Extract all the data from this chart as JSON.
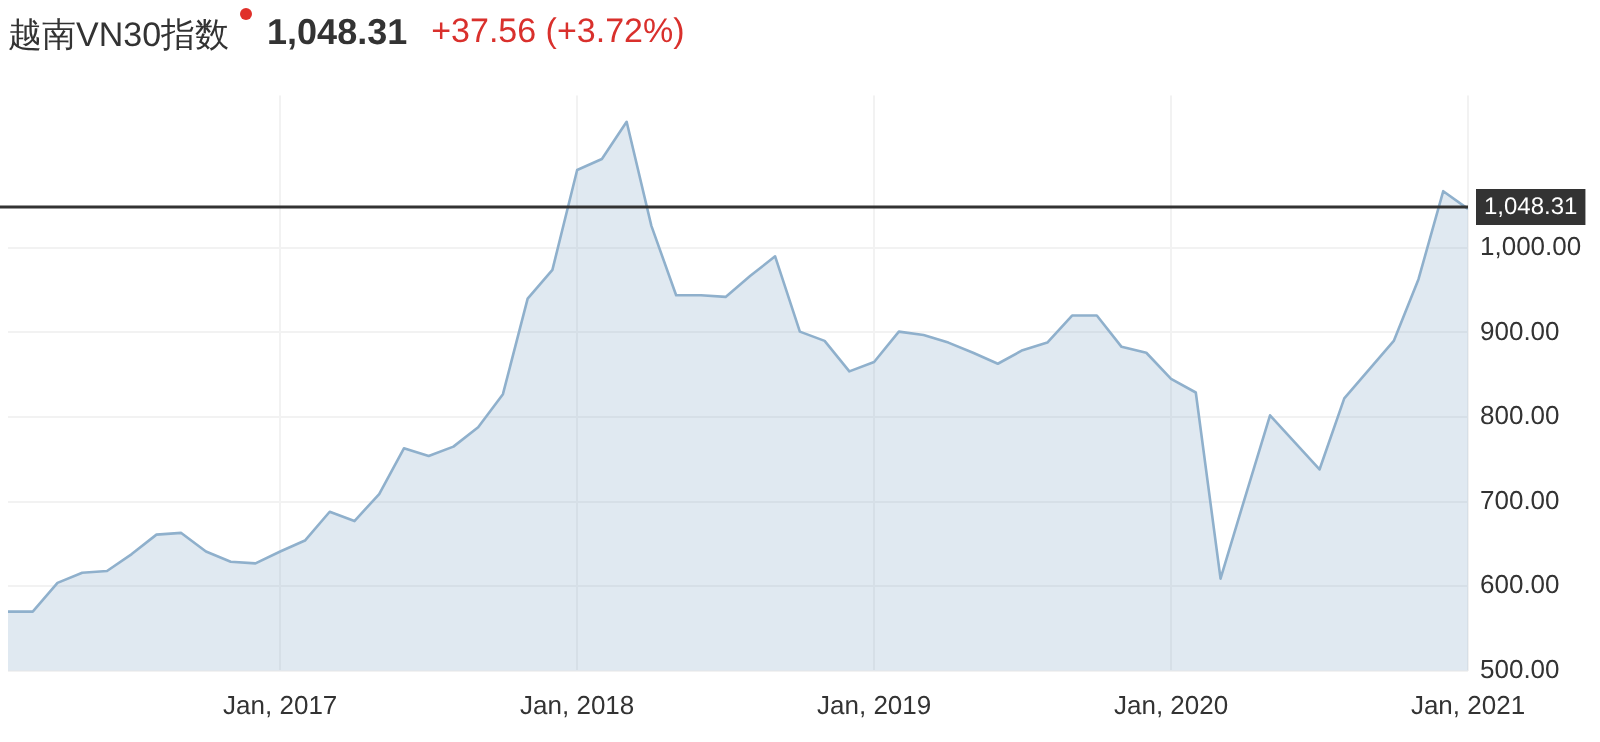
{
  "chart_data": {
    "type": "area",
    "title": "越南VN30指数",
    "subtitle": "1,048.31",
    "annotations": [
      "+37.56 (+3.72%)"
    ],
    "x": [
      "2016-02",
      "2016-03",
      "2016-04",
      "2016-05",
      "2016-06",
      "2016-07",
      "2016-08",
      "2016-09",
      "2016-10",
      "2016-11",
      "2016-12",
      "2017-01",
      "2017-02",
      "2017-03",
      "2017-04",
      "2017-05",
      "2017-06",
      "2017-07",
      "2017-08",
      "2017-09",
      "2017-10",
      "2017-11",
      "2017-12",
      "2018-01",
      "2018-02",
      "2018-03",
      "2018-04",
      "2018-05",
      "2018-06",
      "2018-07",
      "2018-08",
      "2018-09",
      "2018-10",
      "2018-11",
      "2018-12",
      "2019-01",
      "2019-02",
      "2019-03",
      "2019-04",
      "2019-05",
      "2019-06",
      "2019-07",
      "2019-08",
      "2019-09",
      "2019-10",
      "2019-11",
      "2019-12",
      "2020-01",
      "2020-02",
      "2020-03",
      "2020-04",
      "2020-05",
      "2020-06",
      "2020-07",
      "2020-08",
      "2020-09",
      "2020-10",
      "2020-11",
      "2020-12",
      "2021-01"
    ],
    "series": [
      {
        "color": "#8fb0cc",
        "values": [
          570,
          570,
          604,
          616,
          618,
          638,
          661,
          663,
          641,
          629,
          627,
          641,
          654,
          688,
          677,
          709,
          763,
          754,
          765,
          788,
          827,
          940,
          974,
          1092,
          1105,
          1149,
          1026,
          944,
          944,
          942,
          967,
          990,
          901,
          890,
          854,
          865,
          901,
          897,
          888,
          876,
          863,
          879,
          888,
          920,
          920,
          883,
          876,
          845,
          829,
          609,
          706,
          802,
          770,
          738,
          822,
          856,
          890,
          963,
          1067,
          1046
        ]
      }
    ],
    "xlim": [
      "2016-02",
      "2021-01"
    ],
    "xticks": [
      {
        "value": "2017-01",
        "label": "Jan, 2017"
      },
      {
        "value": "2018-01",
        "label": "Jan, 2018"
      },
      {
        "value": "2019-01",
        "label": "Jan, 2019"
      },
      {
        "value": "2020-01",
        "label": "Jan, 2020"
      },
      {
        "value": "2021-01",
        "label": "Jan, 2021"
      }
    ],
    "ylim": [
      500,
      1180
    ],
    "yticks": [
      {
        "value": 500,
        "label": "500.00"
      },
      {
        "value": 600,
        "label": "600.00"
      },
      {
        "value": 700,
        "label": "700.00"
      },
      {
        "value": 800,
        "label": "800.00"
      },
      {
        "value": 900,
        "label": "900.00"
      },
      {
        "value": 1000,
        "label": "1,000.00"
      }
    ],
    "ref_lines": [
      {
        "axis": "y",
        "value": 1048.31,
        "label": "1,048.31",
        "color": "#333333"
      }
    ],
    "grid": true,
    "legend": false,
    "marker": "none"
  }
}
